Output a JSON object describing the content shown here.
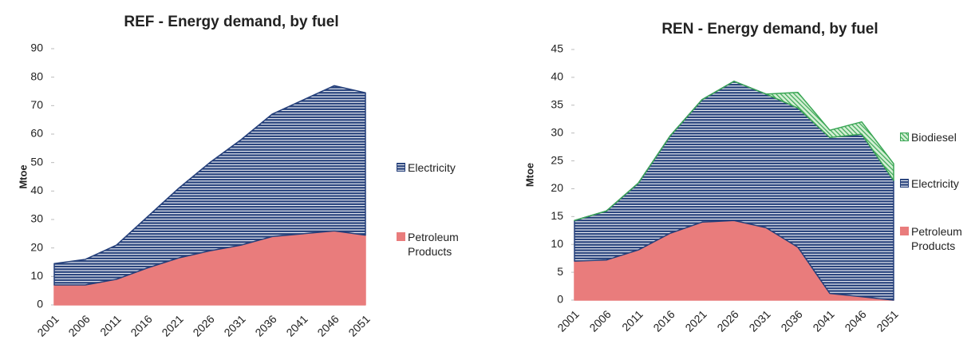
{
  "chart_data": [
    {
      "type": "stacked_area",
      "title": "REF - Energy demand, by fuel",
      "y_label": "Mtoe",
      "categories": [
        "2001",
        "2006",
        "2011",
        "2016",
        "2021",
        "2026",
        "2031",
        "2036",
        "2041",
        "2046",
        "2051"
      ],
      "series": [
        {
          "name": "Petroleum Products",
          "color": "#e97c7c",
          "pattern": "solid",
          "values": [
            7,
            7,
            9,
            13,
            16.5,
            19,
            21,
            24,
            25,
            26,
            24.5
          ]
        },
        {
          "name": "Electricity",
          "color": "#243f7a",
          "pattern": "horizontal",
          "values": [
            7.5,
            9,
            12,
            18,
            24.5,
            31,
            37,
            43,
            47,
            51,
            50
          ]
        }
      ],
      "ylim": [
        0,
        90
      ],
      "yticks": [
        0,
        10,
        20,
        30,
        40,
        50,
        60,
        70,
        80,
        90
      ]
    },
    {
      "type": "stacked_area",
      "title": "REN - Energy demand, by fuel",
      "y_label": "Mtoe",
      "categories": [
        "2001",
        "2006",
        "2011",
        "2016",
        "2021",
        "2026",
        "2031",
        "2036",
        "2041",
        "2046",
        "2051"
      ],
      "series": [
        {
          "name": "Petroleum Products",
          "color": "#e97c7c",
          "pattern": "solid",
          "values": [
            7,
            7.2,
            9,
            12,
            14,
            14.3,
            13,
            9.5,
            1.2,
            0.6,
            0
          ]
        },
        {
          "name": "Electricity",
          "color": "#243f7a",
          "pattern": "horizontal",
          "values": [
            7.3,
            8.8,
            12,
            17.5,
            22,
            25,
            24,
            25,
            28,
            29.2,
            21.5
          ]
        },
        {
          "name": "Biodiesel",
          "color": "#3aa655",
          "pattern": "diagonal",
          "values": [
            0,
            0,
            0,
            0,
            0,
            0,
            0,
            2.8,
            1.3,
            2.2,
            3
          ]
        }
      ],
      "ylim": [
        0,
        45
      ],
      "yticks": [
        0,
        5,
        10,
        15,
        20,
        25,
        30,
        35,
        40,
        45
      ]
    }
  ]
}
